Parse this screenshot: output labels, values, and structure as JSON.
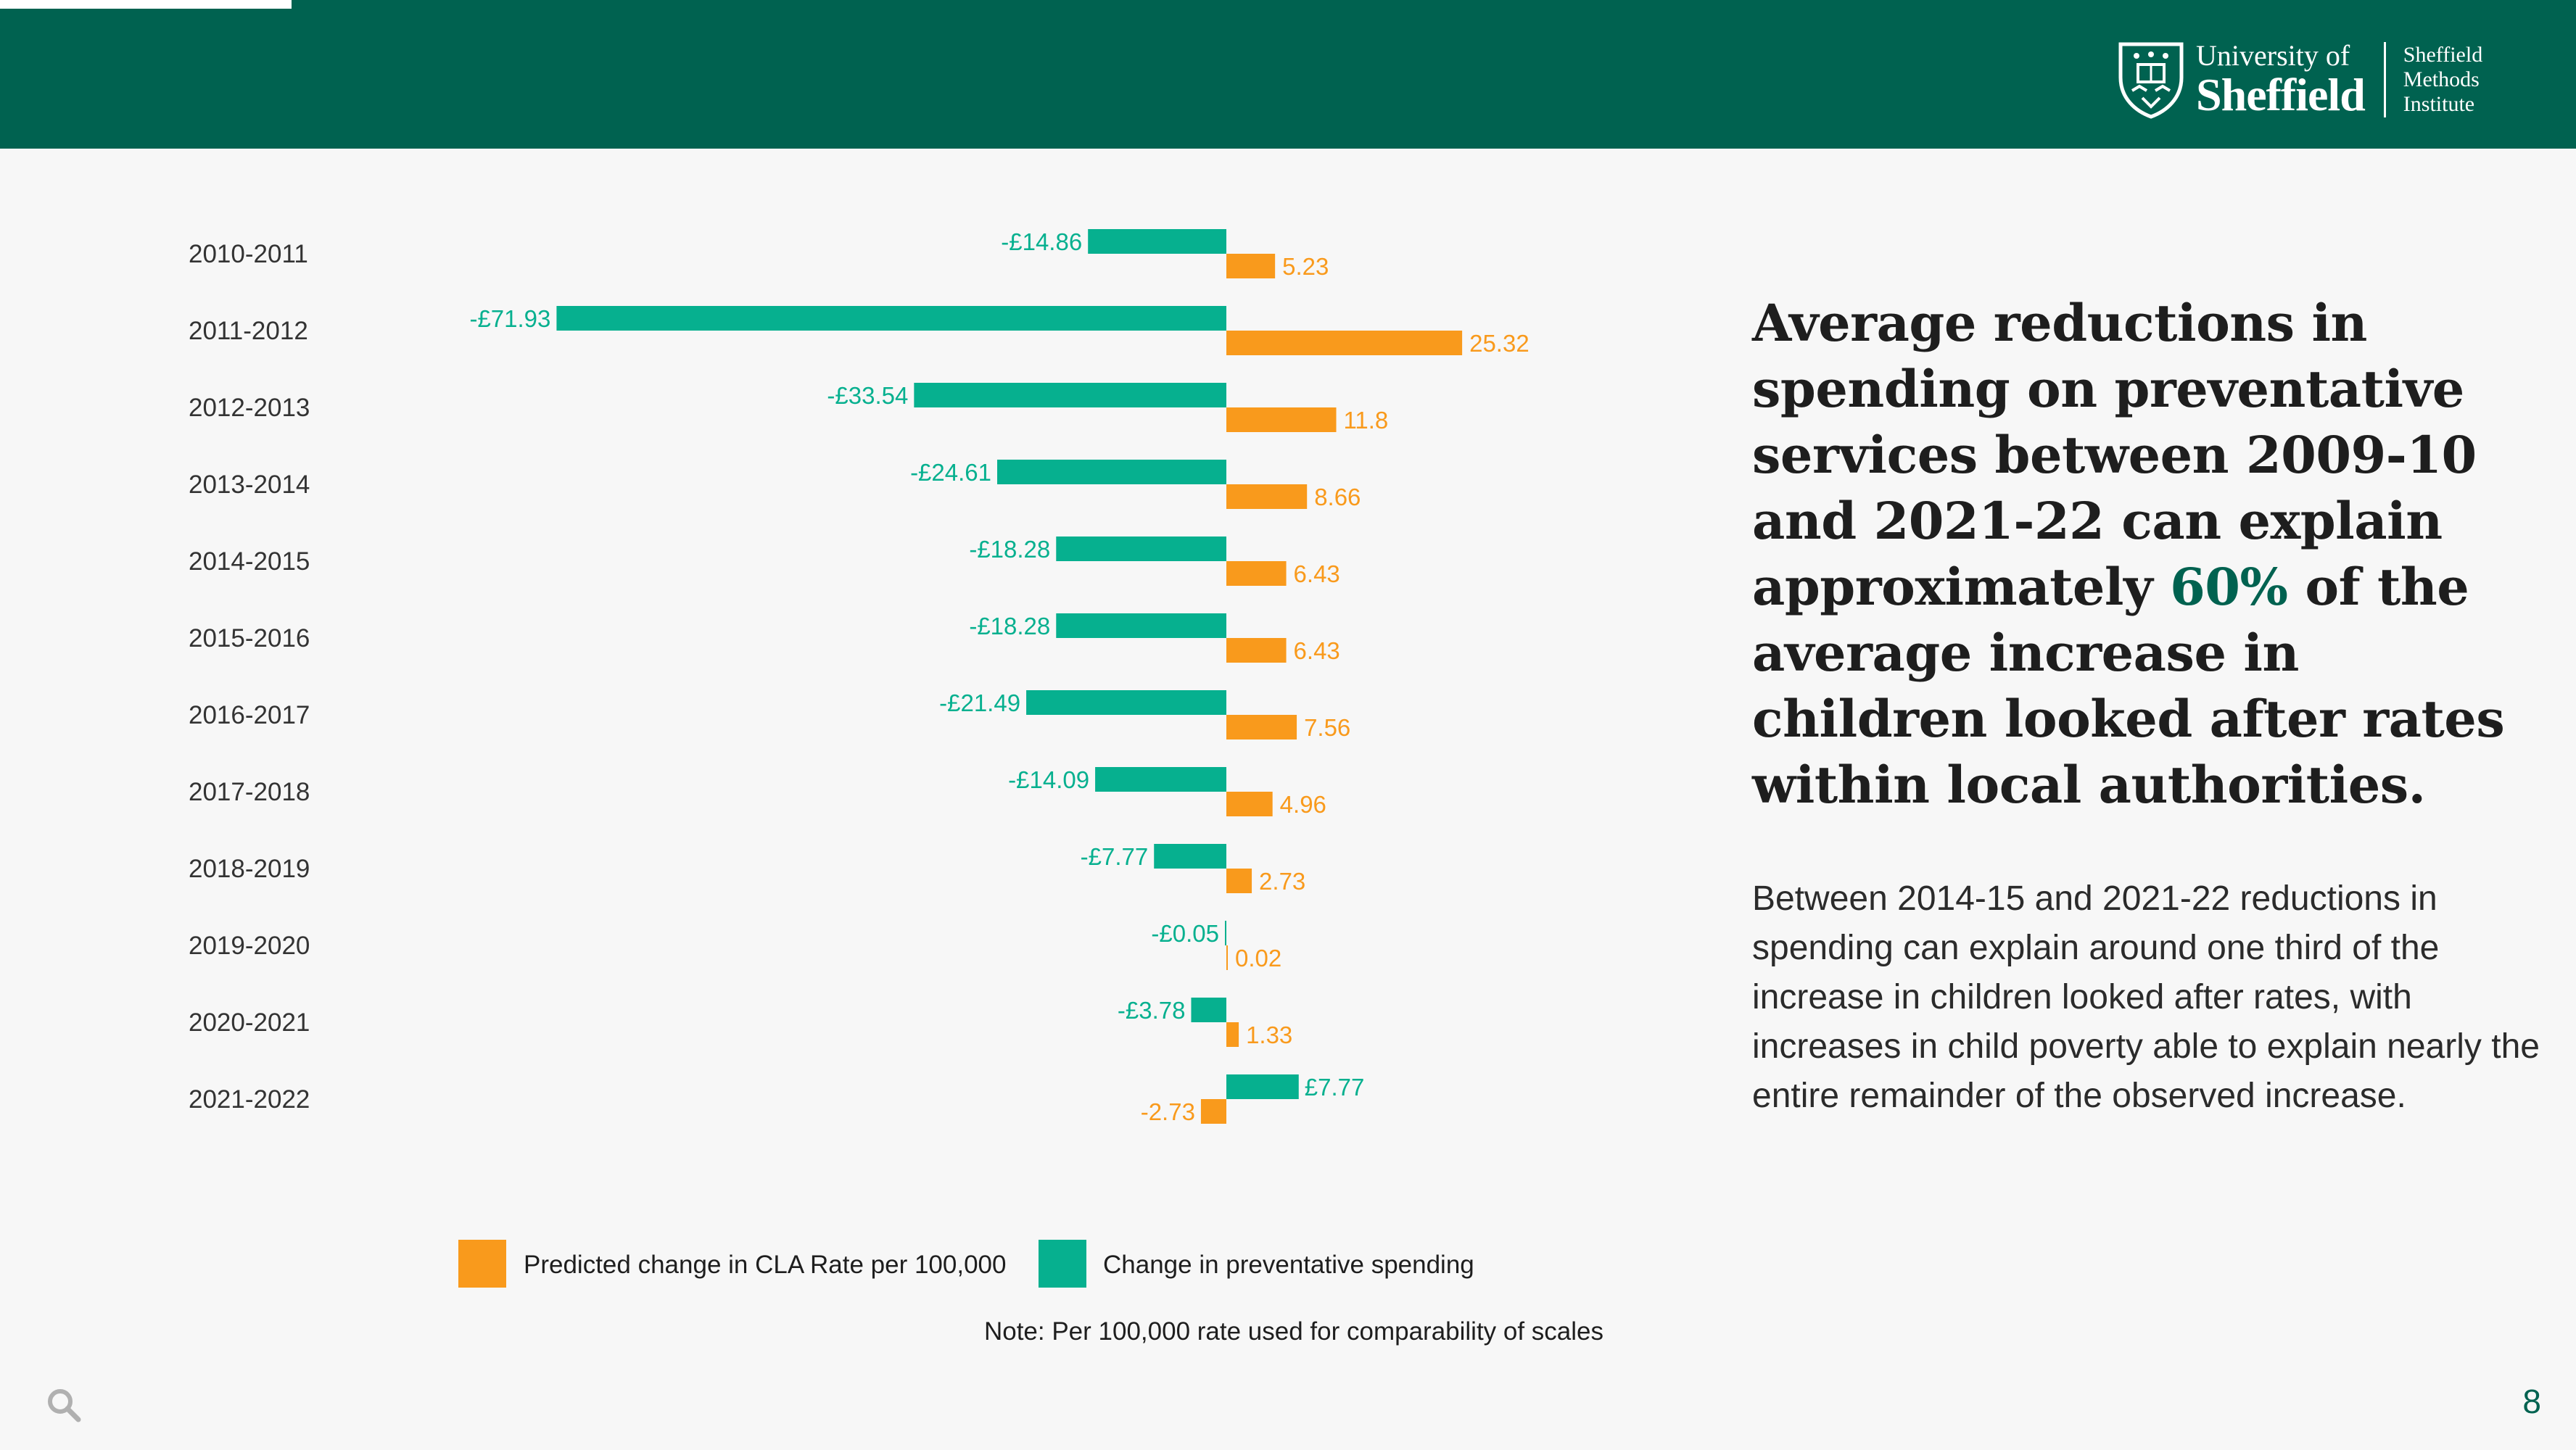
{
  "header": {
    "logo_line1": "University of",
    "logo_line2": "Sheffield",
    "institute_lines": [
      "Sheffield",
      "Methods",
      "Institute"
    ]
  },
  "headline": {
    "before": "Average reductions in spending on preventative services between 2009-10 and 2021-22 can explain approximately ",
    "accent": "60%",
    "after": " of the average increase in children looked after rates within local authorities."
  },
  "body_text": "Between 2014-15 and 2021-22 reductions in spending can explain around one third of the increase in children looked after rates, with increases in child poverty able to explain nearly the entire remainder of the observed increase.",
  "page_number": "8",
  "colors": {
    "spending": "#06b08f",
    "cla": "#f99a1c",
    "brand": "#006250"
  },
  "chart_data": {
    "type": "bar",
    "orientation": "horizontal",
    "categories": [
      "2010-2011",
      "2011-2012",
      "2012-2013",
      "2013-2014",
      "2014-2015",
      "2015-2016",
      "2016-2017",
      "2017-2018",
      "2018-2019",
      "2019-2020",
      "2020-2021",
      "2021-2022"
    ],
    "series": [
      {
        "name": "Change in preventative spending",
        "color": "#06b08f",
        "values": [
          -14.86,
          -71.93,
          -33.54,
          -24.61,
          -18.28,
          -18.28,
          -21.49,
          -14.09,
          -7.77,
          -0.05,
          -3.78,
          7.77
        ],
        "labels": [
          "-£14.86",
          "-£71.93",
          "-£33.54",
          "-£24.61",
          "-£18.28",
          "-£18.28",
          "-£21.49",
          "-£14.09",
          "-£7.77",
          "-£0.05",
          "-£3.78",
          "£7.77"
        ]
      },
      {
        "name": "Predicted change in CLA Rate per 100,000",
        "color": "#f99a1c",
        "values": [
          5.23,
          25.32,
          11.8,
          8.66,
          6.43,
          6.43,
          7.56,
          4.96,
          2.73,
          0.02,
          1.33,
          -2.73
        ],
        "labels": [
          "5.23",
          "25.32",
          "11.8",
          "8.66",
          "6.43",
          "6.43",
          "7.56",
          "4.96",
          "2.73",
          "0.02",
          "1.33",
          "-2.73"
        ]
      }
    ],
    "legend": [
      "Predicted change in CLA Rate per 100,000",
      "Change in preventative spending"
    ],
    "legend_position": "bottom",
    "note": "Note: Per 100,000 rate used for comparability of scales",
    "grid": false
  }
}
